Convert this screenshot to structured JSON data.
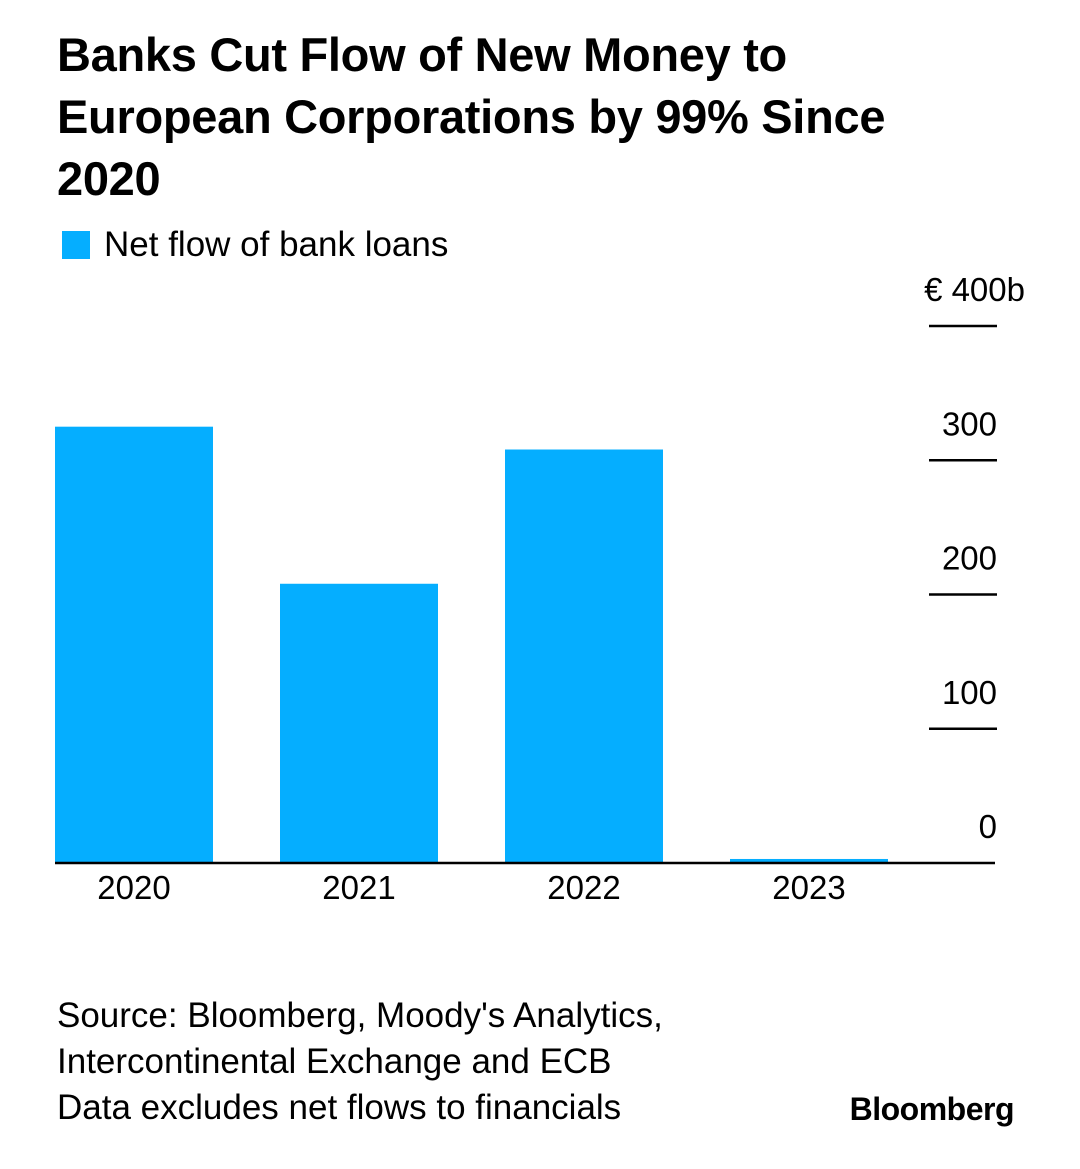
{
  "title": "Banks Cut Flow of New Money to European Corporations by 99% Since 2020",
  "colors": {
    "bar": "#05aeff",
    "axis": "#000000"
  },
  "chart_data": {
    "type": "bar",
    "title": "Banks Cut Flow of New Money to European Corporations by 99% Since 2020",
    "categories": [
      "2020",
      "2021",
      "2022",
      "2023"
    ],
    "series": [
      {
        "name": "Net flow of bank loans",
        "values": [
          325,
          208,
          308,
          3
        ]
      }
    ],
    "y_ticks": [
      0,
      100,
      200,
      300,
      400
    ],
    "y_tick_labels": [
      "0",
      "100",
      "200",
      "300",
      "€ 400b"
    ],
    "ylim": [
      0,
      400
    ],
    "y_axis_side": "right",
    "xlabel": "",
    "ylabel": "",
    "grid": false,
    "legend_position": "top-left"
  },
  "source": {
    "lines": [
      "Source: Bloomberg, Moody's Analytics,",
      "Intercontinental Exchange and ECB",
      "Data excludes net flows to financials"
    ]
  },
  "brand": "Bloomberg"
}
